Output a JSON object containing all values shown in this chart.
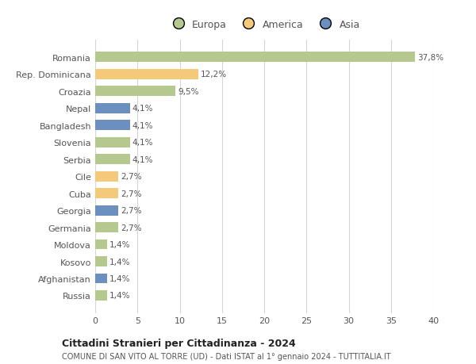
{
  "categories": [
    "Russia",
    "Afghanistan",
    "Kosovo",
    "Moldova",
    "Germania",
    "Georgia",
    "Cuba",
    "Cile",
    "Serbia",
    "Slovenia",
    "Bangladesh",
    "Nepal",
    "Croazia",
    "Rep. Dominicana",
    "Romania"
  ],
  "values": [
    1.4,
    1.4,
    1.4,
    1.4,
    2.7,
    2.7,
    2.7,
    2.7,
    4.1,
    4.1,
    4.1,
    4.1,
    9.5,
    12.2,
    37.8
  ],
  "colors": [
    "#b5c98e",
    "#6b8fbe",
    "#b5c98e",
    "#b5c98e",
    "#b5c98e",
    "#6b8fbe",
    "#f5c97a",
    "#f5c97a",
    "#b5c98e",
    "#b5c98e",
    "#6b8fbe",
    "#6b8fbe",
    "#b5c98e",
    "#f5c97a",
    "#b5c98e"
  ],
  "labels": [
    "1,4%",
    "1,4%",
    "1,4%",
    "1,4%",
    "2,7%",
    "2,7%",
    "2,7%",
    "2,7%",
    "4,1%",
    "4,1%",
    "4,1%",
    "4,1%",
    "9,5%",
    "12,2%",
    "37,8%"
  ],
  "legend": [
    {
      "label": "Europa",
      "color": "#b5c98e"
    },
    {
      "label": "America",
      "color": "#f5c97a"
    },
    {
      "label": "Asia",
      "color": "#6b8fbe"
    }
  ],
  "title": "Cittadini Stranieri per Cittadinanza - 2024",
  "subtitle": "COMUNE DI SAN VITO AL TORRE (UD) - Dati ISTAT al 1° gennaio 2024 - TUTTITALIA.IT",
  "xlim": [
    0,
    40
  ],
  "xticks": [
    0,
    5,
    10,
    15,
    20,
    25,
    30,
    35,
    40
  ],
  "background_color": "#ffffff",
  "grid_color": "#d5d5d5",
  "bar_height": 0.6
}
